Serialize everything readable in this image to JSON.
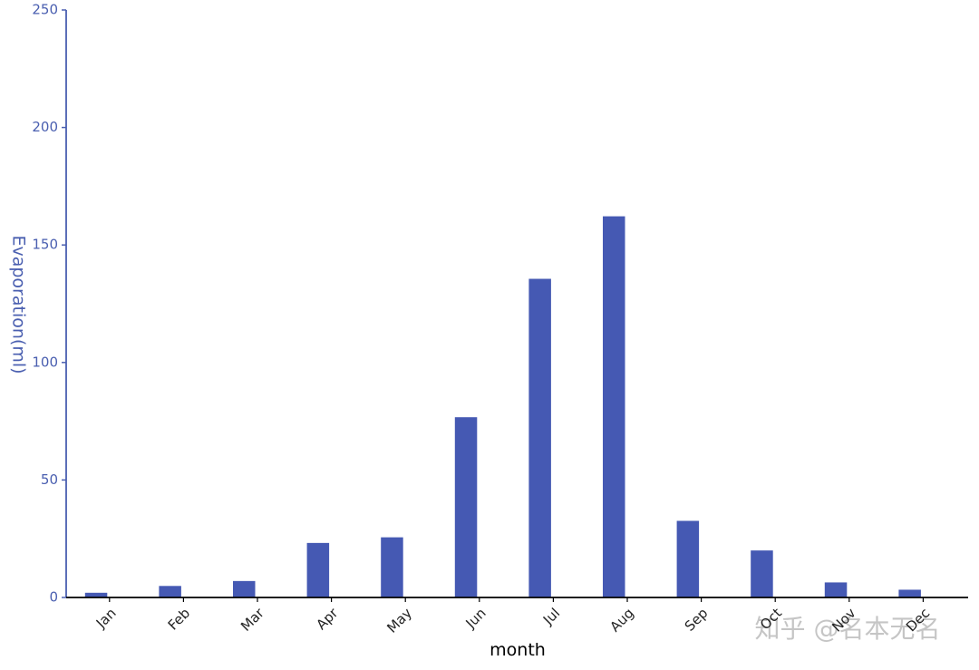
{
  "chart_data": {
    "type": "bar",
    "x_label": "month",
    "y_label": "Evaporation(ml)",
    "categories": [
      "Jan",
      "Feb",
      "Mar",
      "Apr",
      "May",
      "Jun",
      "Jul",
      "Aug",
      "Sep",
      "Oct",
      "Nov",
      "Dec"
    ],
    "values": [
      2.0,
      4.9,
      7.0,
      23.2,
      25.6,
      76.7,
      135.6,
      162.2,
      32.6,
      20.0,
      6.4,
      3.3
    ],
    "color": "#4559b3",
    "ylim": [
      0,
      250
    ],
    "yticks": [
      0,
      50,
      100,
      150,
      200,
      250
    ],
    "grid": false
  },
  "watermark": "知乎 @名本无名"
}
